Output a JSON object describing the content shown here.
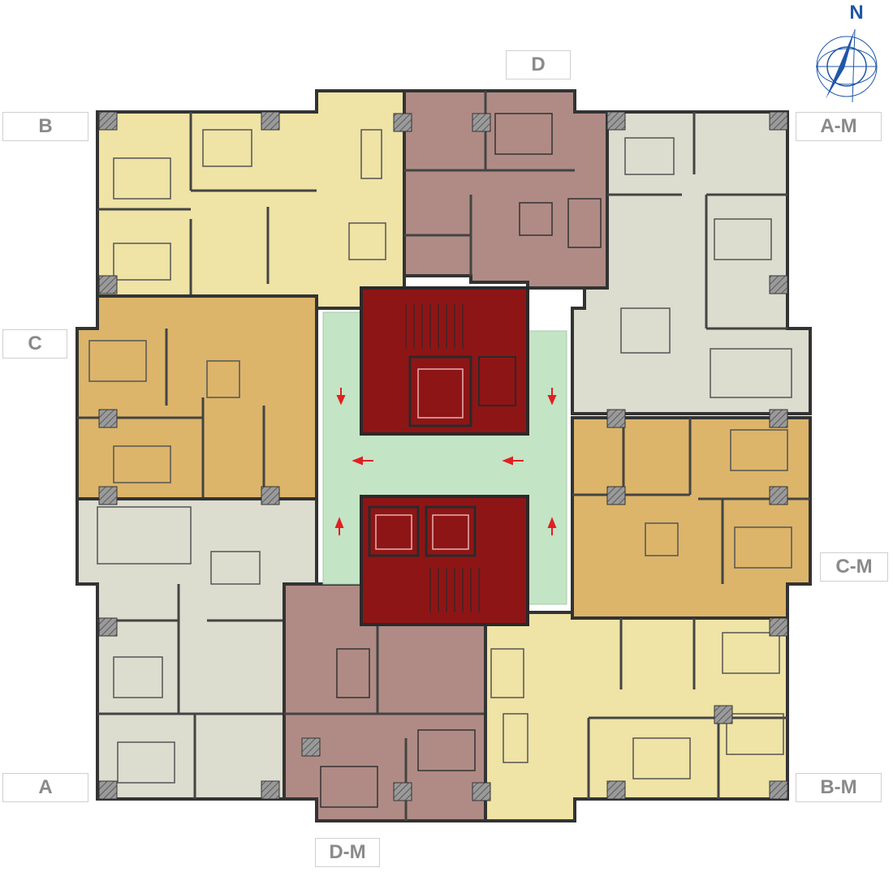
{
  "compass": {
    "north_label": "N"
  },
  "unit_labels": {
    "B": "B",
    "D": "D",
    "A_M": "A-M",
    "C": "C",
    "C_M": "C-M",
    "A": "A",
    "B_M": "B-M",
    "D_M": "D-M"
  },
  "colors": {
    "type_B": "#efe3a6",
    "type_D": "#b08b85",
    "type_C": "#dcb56a",
    "type_A": "#dcddcf",
    "core": "#8e1516",
    "corridor": "#c4e4c6",
    "wall": "#3a3a3a",
    "arrow": "#e02020",
    "compass": "#1f56a8",
    "label_text": "#8a8a8a"
  }
}
